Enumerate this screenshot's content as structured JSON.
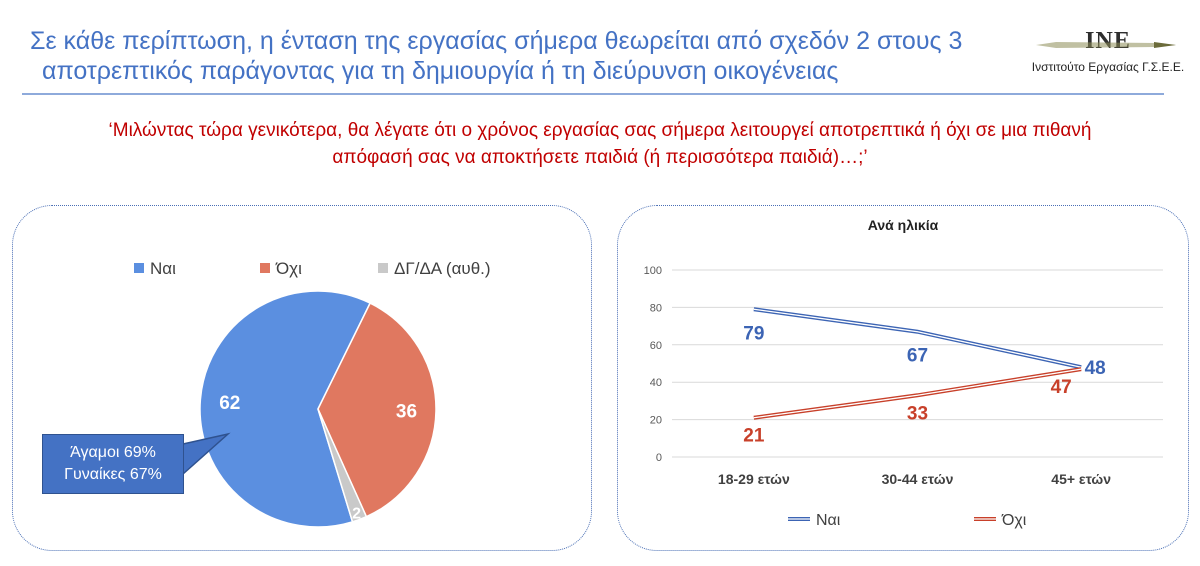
{
  "header": {
    "title_line1": "Σε κάθε περίπτωση, η ένταση της εργασίας σήμερα θεωρείται από σχεδόν 2 στους 3",
    "title_line2": "αποτρεπτικός παράγοντας για τη δημιουργία ή τη διεύρυνση οικογένειας"
  },
  "logo": {
    "mark": "INE",
    "subtitle": "Ινστιτούτο Εργασίας Γ.Σ.Ε.Ε."
  },
  "question": {
    "line1": "‘Μιλώντας τώρα γενικότερα, θα λέγατε ότι ο χρόνος εργασίας σας σήμερα λειτουργεί αποτρεπτικά ή όχι σε μια πιθανή",
    "line2": "απόφασή σας να αποκτήσετε παιδιά (ή περισσότερα παιδιά)…;’"
  },
  "callout": {
    "line1": "Άγαμοι 69%",
    "line2": "Γυναίκες 67%"
  },
  "colors": {
    "nai": "#5b8fe0",
    "oxi": "#e07860",
    "dk": "#c9c9c9",
    "nai_line": "#3c64b4",
    "oxi_line": "#c8402a"
  },
  "chart_data": [
    {
      "type": "pie",
      "title": "",
      "legend_position": "top",
      "slices": [
        {
          "label": "Ναι",
          "value": 62
        },
        {
          "label": "Όχι",
          "value": 36
        },
        {
          "label": "ΔΓ/ΔΑ (αυθ.)",
          "value": 2
        }
      ]
    },
    {
      "type": "line",
      "title": "Ανά ηλικία",
      "categories": [
        "18-29 ετών",
        "30-44 ετών",
        "45+ ετών"
      ],
      "ylim": [
        0,
        100
      ],
      "yticks": [
        0,
        20,
        40,
        60,
        80,
        100
      ],
      "grid": true,
      "legend_position": "bottom",
      "series": [
        {
          "name": "Ναι",
          "values": [
            79,
            67,
            48
          ]
        },
        {
          "name": "Όχι",
          "values": [
            21,
            33,
            47
          ]
        }
      ]
    }
  ]
}
